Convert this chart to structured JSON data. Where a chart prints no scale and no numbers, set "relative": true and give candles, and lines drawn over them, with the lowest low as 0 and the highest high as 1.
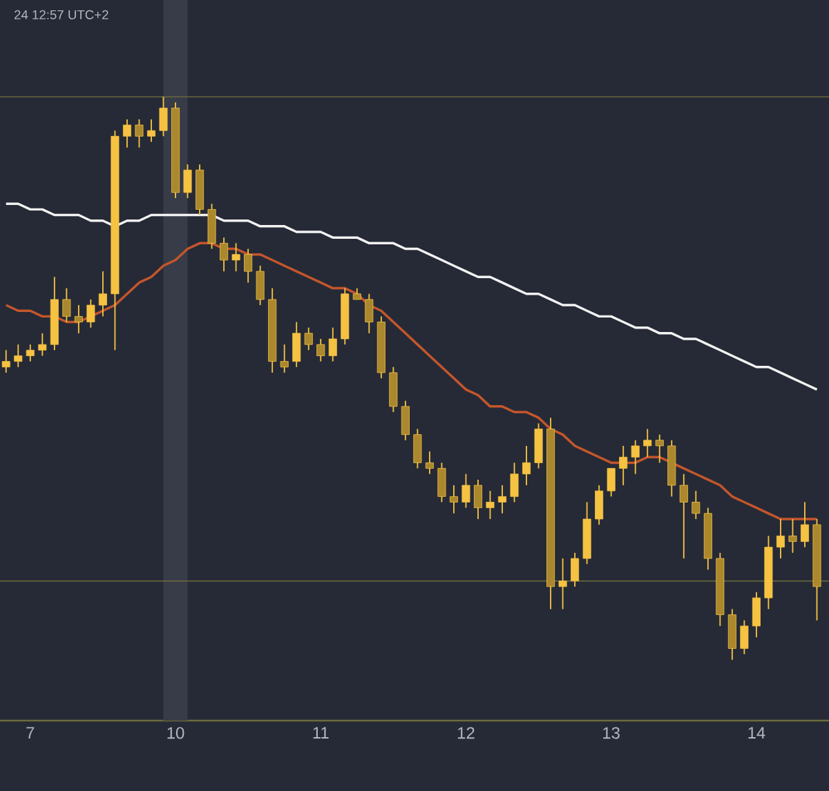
{
  "chart_data": {
    "type": "candlestick",
    "relative": true,
    "color": "#f5c242",
    "annotations": [
      "24 12:57 UTC+2"
    ],
    "categories": [
      null,
      null,
      "7",
      null,
      null,
      null,
      null,
      null,
      null,
      null,
      null,
      null,
      null,
      null,
      "10",
      null,
      null,
      null,
      null,
      null,
      null,
      null,
      null,
      null,
      null,
      null,
      "11",
      null,
      null,
      null,
      null,
      null,
      null,
      null,
      null,
      null,
      null,
      null,
      "12",
      null,
      null,
      null,
      null,
      null,
      null,
      null,
      null,
      null,
      null,
      null,
      "13",
      null,
      null,
      null,
      null,
      null,
      null,
      null,
      null,
      null,
      null,
      null,
      "14",
      null,
      null,
      null,
      null,
      null
    ],
    "ohlc": [
      [
        0.52,
        0.55,
        0.51,
        0.53
      ],
      [
        0.53,
        0.56,
        0.52,
        0.54
      ],
      [
        0.54,
        0.56,
        0.53,
        0.55
      ],
      [
        0.55,
        0.58,
        0.54,
        0.56
      ],
      [
        0.56,
        0.68,
        0.55,
        0.64
      ],
      [
        0.64,
        0.66,
        0.6,
        0.61
      ],
      [
        0.61,
        0.63,
        0.58,
        0.6
      ],
      [
        0.6,
        0.64,
        0.59,
        0.63
      ],
      [
        0.63,
        0.69,
        0.61,
        0.65
      ],
      [
        0.65,
        0.94,
        0.55,
        0.93
      ],
      [
        0.93,
        0.96,
        0.91,
        0.95
      ],
      [
        0.95,
        0.96,
        0.91,
        0.93
      ],
      [
        0.93,
        0.96,
        0.92,
        0.94
      ],
      [
        0.94,
        1.0,
        0.93,
        0.98
      ],
      [
        0.98,
        0.99,
        0.82,
        0.83
      ],
      [
        0.83,
        0.88,
        0.82,
        0.87
      ],
      [
        0.87,
        0.88,
        0.79,
        0.8
      ],
      [
        0.8,
        0.81,
        0.73,
        0.74
      ],
      [
        0.74,
        0.75,
        0.69,
        0.71
      ],
      [
        0.71,
        0.74,
        0.69,
        0.72
      ],
      [
        0.72,
        0.73,
        0.67,
        0.69
      ],
      [
        0.69,
        0.7,
        0.63,
        0.64
      ],
      [
        0.64,
        0.66,
        0.51,
        0.53
      ],
      [
        0.53,
        0.56,
        0.51,
        0.52
      ],
      [
        0.53,
        0.6,
        0.52,
        0.58
      ],
      [
        0.58,
        0.59,
        0.55,
        0.56
      ],
      [
        0.56,
        0.57,
        0.53,
        0.54
      ],
      [
        0.54,
        0.59,
        0.53,
        0.57
      ],
      [
        0.57,
        0.66,
        0.56,
        0.65
      ],
      [
        0.65,
        0.66,
        0.64,
        0.64
      ],
      [
        0.64,
        0.65,
        0.58,
        0.6
      ],
      [
        0.6,
        0.61,
        0.5,
        0.51
      ],
      [
        0.51,
        0.52,
        0.44,
        0.45
      ],
      [
        0.45,
        0.46,
        0.39,
        0.4
      ],
      [
        0.4,
        0.41,
        0.34,
        0.35
      ],
      [
        0.35,
        0.37,
        0.33,
        0.34
      ],
      [
        0.34,
        0.35,
        0.28,
        0.29
      ],
      [
        0.29,
        0.31,
        0.26,
        0.28
      ],
      [
        0.28,
        0.33,
        0.27,
        0.31
      ],
      [
        0.31,
        0.32,
        0.25,
        0.27
      ],
      [
        0.27,
        0.3,
        0.25,
        0.28
      ],
      [
        0.28,
        0.31,
        0.26,
        0.29
      ],
      [
        0.29,
        0.35,
        0.28,
        0.33
      ],
      [
        0.33,
        0.38,
        0.31,
        0.35
      ],
      [
        0.35,
        0.42,
        0.34,
        0.41
      ],
      [
        0.41,
        0.43,
        0.09,
        0.13
      ],
      [
        0.13,
        0.18,
        0.09,
        0.14
      ],
      [
        0.14,
        0.19,
        0.13,
        0.18
      ],
      [
        0.18,
        0.28,
        0.17,
        0.25
      ],
      [
        0.25,
        0.31,
        0.24,
        0.3
      ],
      [
        0.3,
        0.34,
        0.29,
        0.34
      ],
      [
        0.34,
        0.38,
        0.31,
        0.36
      ],
      [
        0.36,
        0.39,
        0.33,
        0.38
      ],
      [
        0.38,
        0.41,
        0.36,
        0.39
      ],
      [
        0.39,
        0.4,
        0.35,
        0.38
      ],
      [
        0.38,
        0.39,
        0.29,
        0.31
      ],
      [
        0.31,
        0.33,
        0.18,
        0.28
      ],
      [
        0.28,
        0.3,
        0.25,
        0.26
      ],
      [
        0.26,
        0.27,
        0.16,
        0.18
      ],
      [
        0.18,
        0.19,
        0.06,
        0.08
      ],
      [
        0.08,
        0.09,
        0.0,
        0.02
      ],
      [
        0.02,
        0.07,
        0.01,
        0.06
      ],
      [
        0.06,
        0.12,
        0.04,
        0.11
      ],
      [
        0.11,
        0.22,
        0.09,
        0.2
      ],
      [
        0.2,
        0.25,
        0.18,
        0.22
      ],
      [
        0.22,
        0.25,
        0.19,
        0.21
      ],
      [
        0.21,
        0.28,
        0.2,
        0.24
      ],
      [
        0.24,
        0.25,
        0.07,
        0.13
      ]
    ],
    "series": [
      {
        "type": "line",
        "color": "#f2f2f2",
        "values": [
          0.81,
          0.81,
          0.8,
          0.8,
          0.79,
          0.79,
          0.79,
          0.78,
          0.78,
          0.77,
          0.78,
          0.78,
          0.79,
          0.79,
          0.79,
          0.79,
          0.79,
          0.79,
          0.78,
          0.78,
          0.78,
          0.77,
          0.77,
          0.77,
          0.76,
          0.76,
          0.76,
          0.75,
          0.75,
          0.75,
          0.74,
          0.74,
          0.74,
          0.73,
          0.73,
          0.72,
          0.71,
          0.7,
          0.69,
          0.68,
          0.68,
          0.67,
          0.66,
          0.65,
          0.65,
          0.64,
          0.63,
          0.63,
          0.62,
          0.61,
          0.61,
          0.6,
          0.59,
          0.59,
          0.58,
          0.58,
          0.57,
          0.57,
          0.56,
          0.55,
          0.54,
          0.53,
          0.52,
          0.52,
          0.51,
          0.5,
          0.49,
          0.48
        ]
      },
      {
        "type": "line",
        "color": "#c4562c",
        "values": [
          0.63,
          0.62,
          0.62,
          0.61,
          0.61,
          0.6,
          0.6,
          0.61,
          0.62,
          0.63,
          0.65,
          0.67,
          0.68,
          0.7,
          0.71,
          0.73,
          0.74,
          0.74,
          0.73,
          0.73,
          0.72,
          0.72,
          0.71,
          0.7,
          0.69,
          0.68,
          0.67,
          0.66,
          0.66,
          0.65,
          0.63,
          0.62,
          0.6,
          0.58,
          0.56,
          0.54,
          0.52,
          0.5,
          0.48,
          0.47,
          0.45,
          0.45,
          0.44,
          0.44,
          0.43,
          0.41,
          0.4,
          0.38,
          0.37,
          0.36,
          0.35,
          0.35,
          0.35,
          0.36,
          0.36,
          0.35,
          0.34,
          0.33,
          0.32,
          0.31,
          0.29,
          0.28,
          0.27,
          0.26,
          0.25,
          0.25,
          0.25,
          0.25
        ]
      }
    ],
    "ref_lines": [
      {
        "axis": "y",
        "value": 1.0,
        "color": "#6e6c3e"
      },
      {
        "axis": "y",
        "value": 0.14,
        "color": "#6e6c3e"
      }
    ],
    "bands": [
      {
        "axis": "x",
        "from": "10",
        "to": "10",
        "color": "#383c48"
      }
    ]
  }
}
